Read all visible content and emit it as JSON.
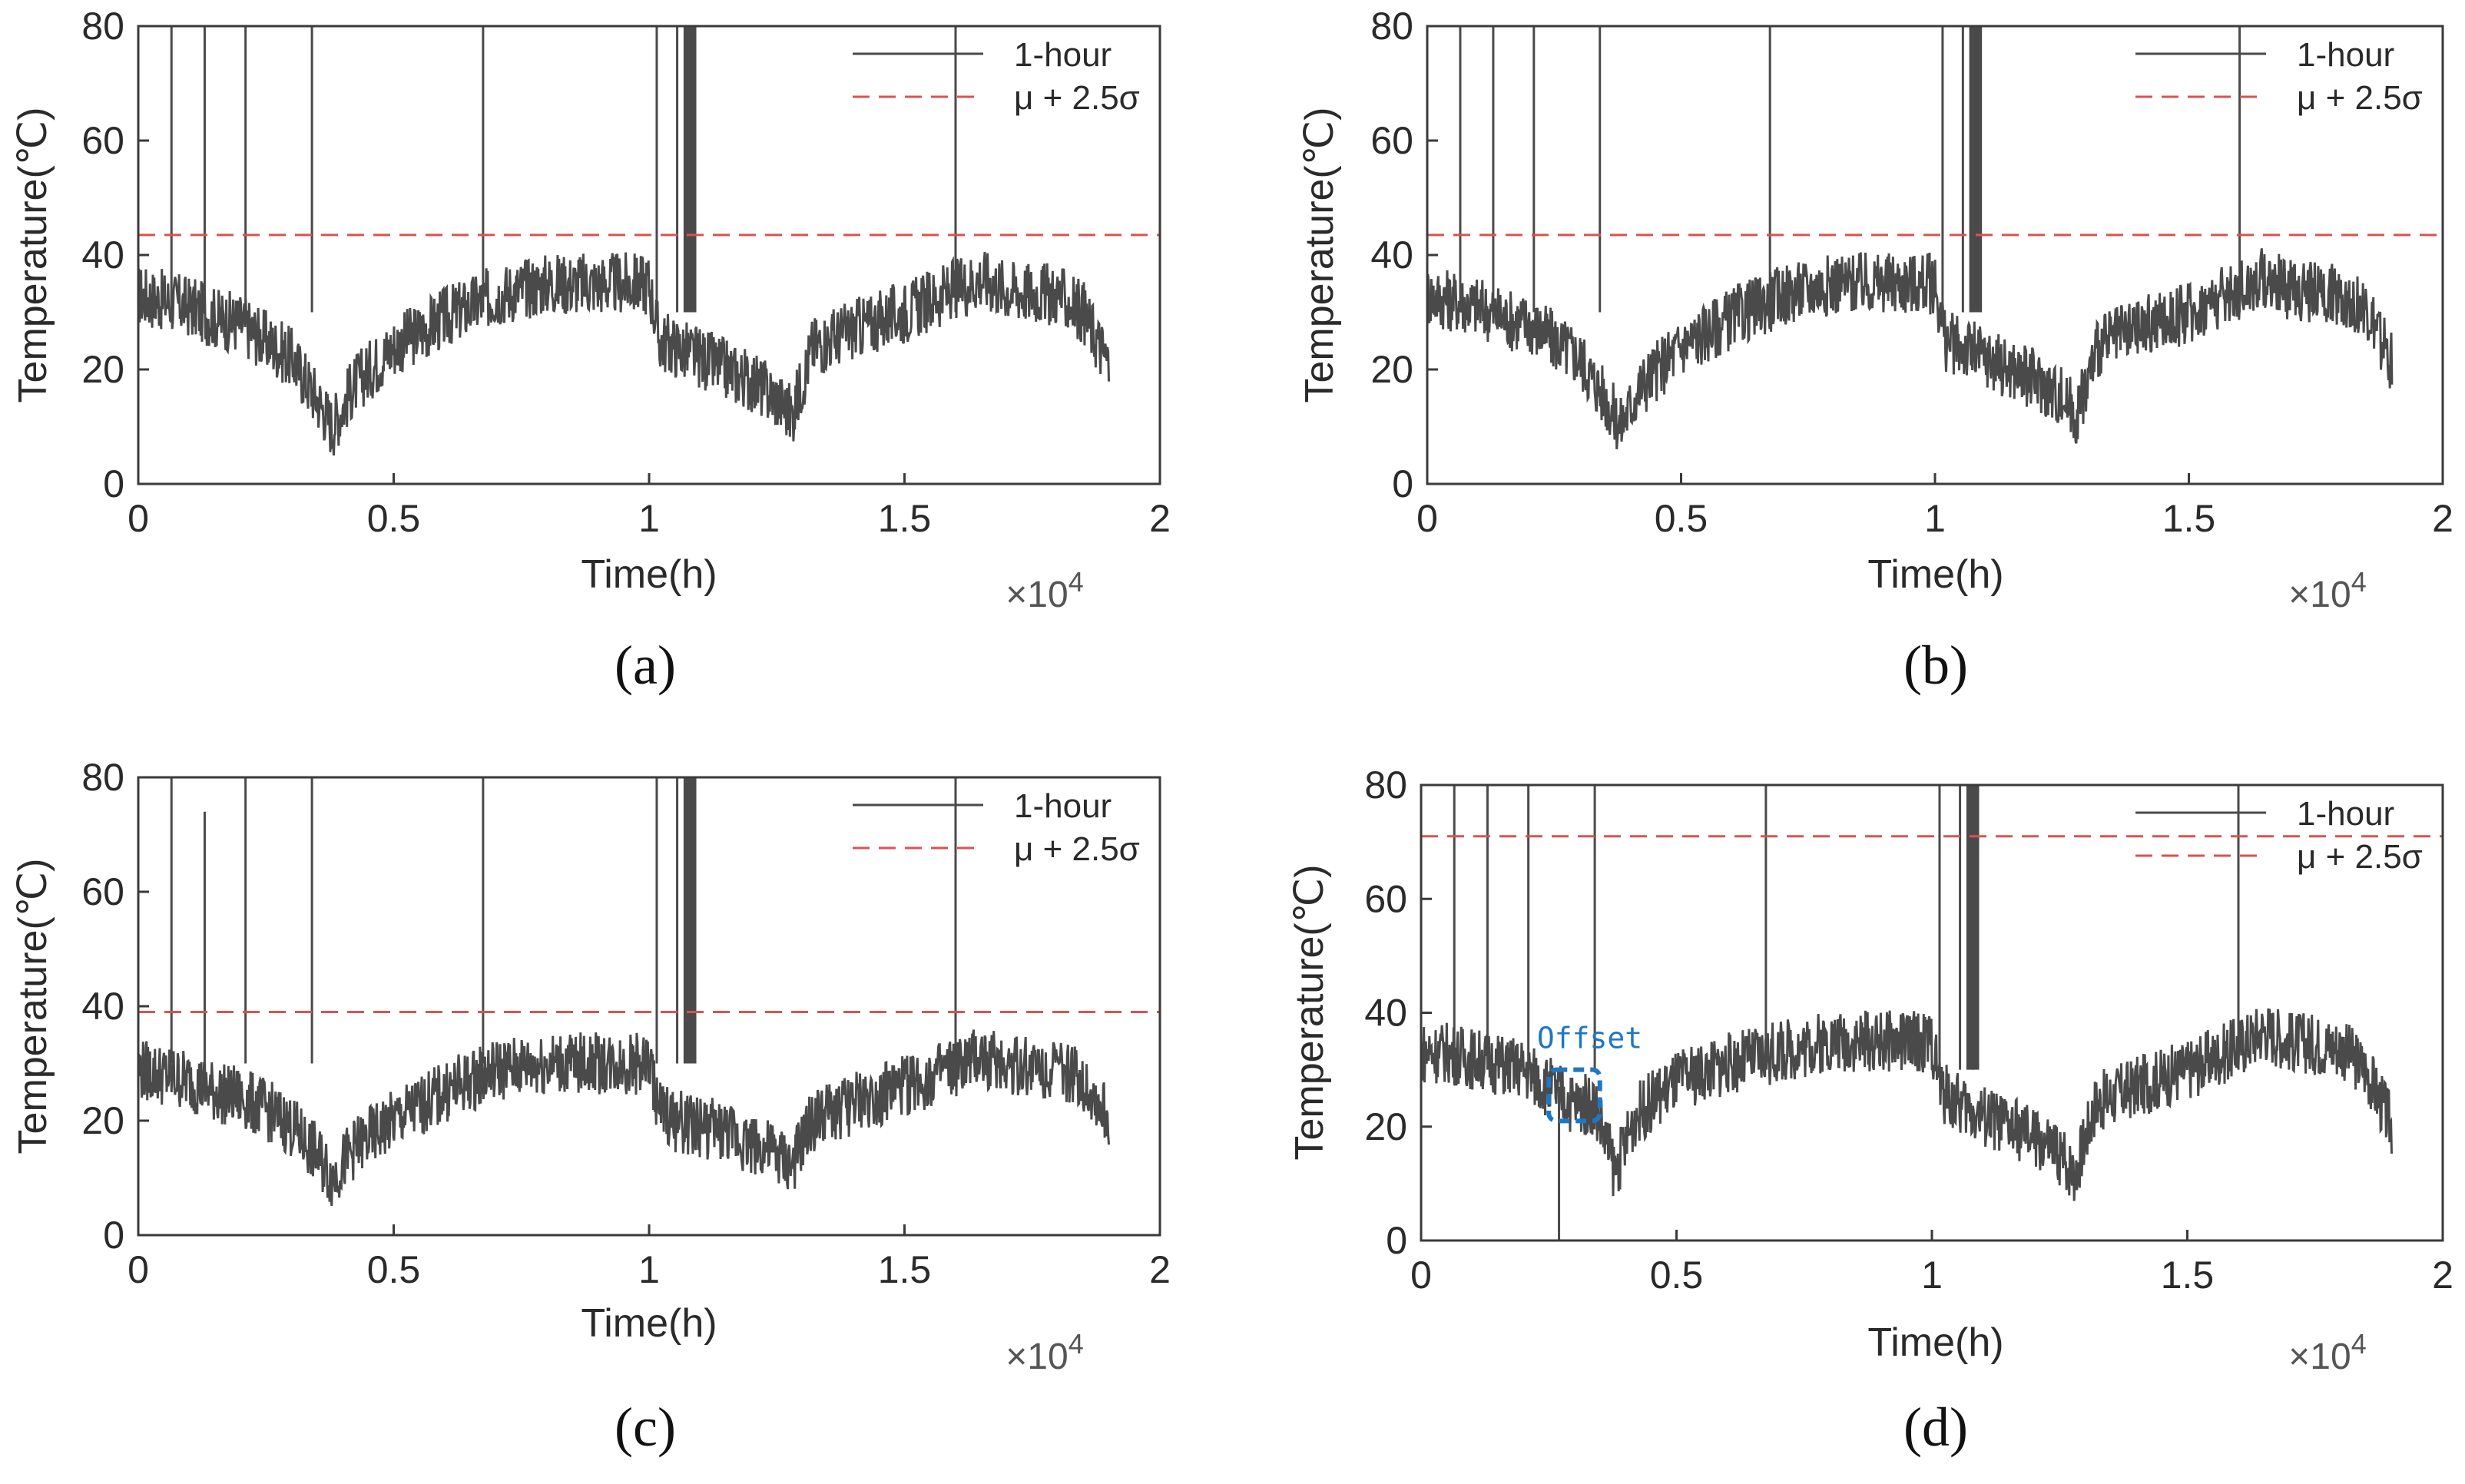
{
  "figure": {
    "common": {
      "xlabel": "Time(h)",
      "ylabel": "Temperature(℃)",
      "x_multiplier_base": "×10",
      "x_multiplier_exp": "4",
      "legend_solid": "1-hour",
      "legend_dashed": "μ + 2.5σ",
      "xlim": [
        0,
        2
      ],
      "ylim": [
        0,
        80
      ],
      "xticks": [
        "0",
        "0.5",
        "1",
        "1.5",
        "2"
      ],
      "yticks": [
        "0",
        "20",
        "40",
        "60",
        "80"
      ]
    }
  },
  "chart_data": [
    {
      "panel": "(a)",
      "type": "line",
      "xlabel": "Time(h)",
      "ylabel": "Temperature(℃)",
      "x_units": "×10^4 h",
      "xlim": [
        0,
        2
      ],
      "ylim": [
        0,
        80
      ],
      "legend": [
        "1-hour",
        "μ + 2.5σ"
      ],
      "threshold": 43.5,
      "series": [
        {
          "name": "1-hour",
          "x": [
            0,
            0.05,
            0.1,
            0.15,
            0.2,
            0.25,
            0.3,
            0.35,
            0.38,
            0.42,
            0.5,
            0.6,
            0.7,
            0.8,
            0.9,
            1.0,
            1.02,
            1.05,
            1.1,
            1.15,
            1.2,
            1.25,
            1.28,
            1.32,
            1.4,
            1.5,
            1.6,
            1.65,
            1.7,
            1.8,
            1.85,
            1.9
          ],
          "y": [
            33,
            32,
            31,
            29,
            28,
            25,
            22,
            15,
            10,
            17,
            24,
            29,
            33,
            35,
            35,
            35,
            25,
            24,
            22,
            20,
            18,
            15,
            12,
            24,
            27,
            30,
            34,
            36,
            34,
            33,
            30,
            21
          ]
        }
      ],
      "spikes": [
        {
          "x": 0.065,
          "y": 80
        },
        {
          "x": 0.13,
          "y": 80
        },
        {
          "x": 0.21,
          "y": 80
        },
        {
          "x": 0.34,
          "y": 80
        },
        {
          "x": 0.675,
          "y": 80
        },
        {
          "x": 1.015,
          "y": 80
        },
        {
          "x": 1.055,
          "y": 80
        },
        {
          "x": 1.075,
          "y": 80
        },
        {
          "x": 1.085,
          "y": 80
        },
        {
          "x": 1.6,
          "y": 80
        }
      ]
    },
    {
      "panel": "(b)",
      "type": "line",
      "xlabel": "Time(h)",
      "ylabel": "Temperature(℃)",
      "x_units": "×10^4 h",
      "xlim": [
        0,
        2
      ],
      "ylim": [
        0,
        80
      ],
      "legend": [
        "1-hour",
        "μ + 2.5σ"
      ],
      "threshold": 43.5,
      "series": [
        {
          "name": "1-hour",
          "x": [
            0,
            0.05,
            0.1,
            0.15,
            0.2,
            0.25,
            0.3,
            0.35,
            0.38,
            0.42,
            0.5,
            0.6,
            0.7,
            0.8,
            0.9,
            1.0,
            1.02,
            1.05,
            1.1,
            1.15,
            1.2,
            1.25,
            1.28,
            1.32,
            1.4,
            1.5,
            1.6,
            1.65,
            1.7,
            1.8,
            1.85,
            1.9
          ],
          "y": [
            33,
            32,
            31,
            29,
            28,
            25,
            22,
            15,
            10,
            17,
            24,
            29,
            33,
            35,
            35,
            35,
            25,
            24,
            22,
            20,
            18,
            15,
            12,
            24,
            27,
            30,
            34,
            36,
            34,
            33,
            30,
            21
          ]
        }
      ],
      "spikes": [
        {
          "x": 0.065,
          "y": 80
        },
        {
          "x": 0.13,
          "y": 80
        },
        {
          "x": 0.21,
          "y": 80
        },
        {
          "x": 0.34,
          "y": 80
        },
        {
          "x": 0.675,
          "y": 80
        },
        {
          "x": 1.015,
          "y": 80
        },
        {
          "x": 1.055,
          "y": 80
        },
        {
          "x": 1.075,
          "y": 80
        },
        {
          "x": 1.085,
          "y": 80
        },
        {
          "x": 1.6,
          "y": 80
        }
      ]
    },
    {
      "panel": "(c)",
      "type": "line",
      "xlabel": "Time(h)",
      "ylabel": "Temperature(℃)",
      "x_units": "×10^4 h",
      "xlim": [
        0,
        2
      ],
      "ylim": [
        0,
        80
      ],
      "legend": [
        "1-hour",
        "μ + 2.5σ"
      ],
      "threshold": 39,
      "series": [
        {
          "name": "1-hour",
          "x": [
            0,
            0.05,
            0.1,
            0.15,
            0.2,
            0.25,
            0.3,
            0.35,
            0.38,
            0.42,
            0.5,
            0.6,
            0.7,
            0.8,
            0.9,
            1.0,
            1.02,
            1.05,
            1.1,
            1.15,
            1.2,
            1.25,
            1.28,
            1.32,
            1.4,
            1.5,
            1.6,
            1.65,
            1.7,
            1.8,
            1.85,
            1.9
          ],
          "y": [
            29,
            28,
            27,
            25,
            24,
            22,
            19,
            14,
            10,
            15,
            20,
            25,
            29,
            30,
            30,
            30,
            22,
            20,
            19,
            18,
            16,
            14,
            12,
            20,
            23,
            26,
            29,
            31,
            30,
            29,
            27,
            20
          ]
        }
      ],
      "spikes": [
        {
          "x": 0.065,
          "y": 80
        },
        {
          "x": 0.13,
          "y": 74
        },
        {
          "x": 0.21,
          "y": 80
        },
        {
          "x": 0.34,
          "y": 80
        },
        {
          "x": 0.675,
          "y": 80
        },
        {
          "x": 1.015,
          "y": 80
        },
        {
          "x": 1.055,
          "y": 80
        },
        {
          "x": 1.075,
          "y": 80
        },
        {
          "x": 1.085,
          "y": 80
        },
        {
          "x": 1.6,
          "y": 80
        }
      ]
    },
    {
      "panel": "(d)",
      "type": "line",
      "xlabel": "Time(h)",
      "ylabel": "Temperature(℃)",
      "x_units": "×10^4 h",
      "xlim": [
        0,
        2
      ],
      "ylim": [
        0,
        80
      ],
      "legend": [
        "1-hour",
        "μ + 2.5σ"
      ],
      "threshold": 71,
      "annotation": "Offset",
      "annotation_box": {
        "x": [
          0.25,
          0.35
        ],
        "y": [
          21,
          30
        ]
      },
      "series": [
        {
          "name": "1-hour",
          "x": [
            0,
            0.05,
            0.1,
            0.15,
            0.2,
            0.25,
            0.3,
            0.34,
            0.38,
            0.42,
            0.5,
            0.6,
            0.7,
            0.8,
            0.9,
            1.0,
            1.02,
            1.05,
            1.1,
            1.15,
            1.2,
            1.25,
            1.28,
            1.32,
            1.4,
            1.5,
            1.6,
            1.65,
            1.7,
            1.8,
            1.85,
            1.9
          ],
          "y": [
            33,
            33,
            32,
            31,
            30,
            27,
            24,
            24,
            12,
            22,
            28,
            31,
            33,
            35,
            35,
            35,
            26,
            24,
            22,
            20,
            18,
            15,
            12,
            24,
            27,
            30,
            34,
            37,
            35,
            34,
            30,
            20
          ]
        }
      ],
      "spikes": [
        {
          "x": 0.065,
          "y": 80
        },
        {
          "x": 0.13,
          "y": 80
        },
        {
          "x": 0.21,
          "y": 80
        },
        {
          "x": 0.27,
          "y": 0
        },
        {
          "x": 0.34,
          "y": 80
        },
        {
          "x": 0.675,
          "y": 80
        },
        {
          "x": 1.015,
          "y": 80
        },
        {
          "x": 1.055,
          "y": 80
        },
        {
          "x": 1.075,
          "y": 80
        },
        {
          "x": 1.085,
          "y": 80
        },
        {
          "x": 1.6,
          "y": 80
        }
      ]
    }
  ],
  "colors": {
    "signal": "#4a4a4a",
    "threshold": "#d9534f",
    "axis": "#3a3a3a",
    "annotation": "#1f77c4"
  }
}
